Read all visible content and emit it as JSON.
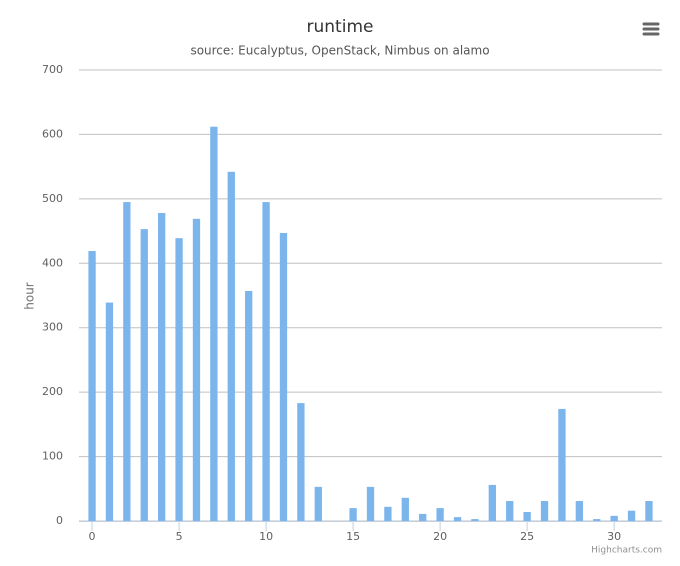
{
  "chart_data": {
    "type": "bar",
    "title": "runtime",
    "subtitle": "source: Eucalyptus, OpenStack, Nimbus on alamo",
    "y_label": "hour",
    "credits": "Highcharts.com",
    "x": [
      0,
      1,
      2,
      3,
      4,
      5,
      6,
      7,
      8,
      9,
      10,
      11,
      12,
      13,
      14,
      15,
      16,
      17,
      18,
      19,
      20,
      21,
      22,
      23,
      24,
      25,
      26,
      27,
      28,
      29,
      30,
      31,
      32
    ],
    "values": [
      419,
      339,
      495,
      453,
      478,
      439,
      469,
      612,
      542,
      357,
      495,
      447,
      183,
      53,
      0,
      20,
      53,
      22,
      36,
      11,
      20,
      6,
      3,
      56,
      31,
      14,
      31,
      174,
      31,
      3,
      8,
      16,
      31
    ],
    "color": "#7cb5ec",
    "xlim": [
      -0.75,
      32.75
    ],
    "xticks": [
      0,
      5,
      10,
      15,
      20,
      25,
      30
    ],
    "ylim": [
      0,
      700
    ],
    "yticks": [
      0,
      100,
      200,
      300,
      400,
      500,
      600,
      700
    ],
    "grid": true
  }
}
